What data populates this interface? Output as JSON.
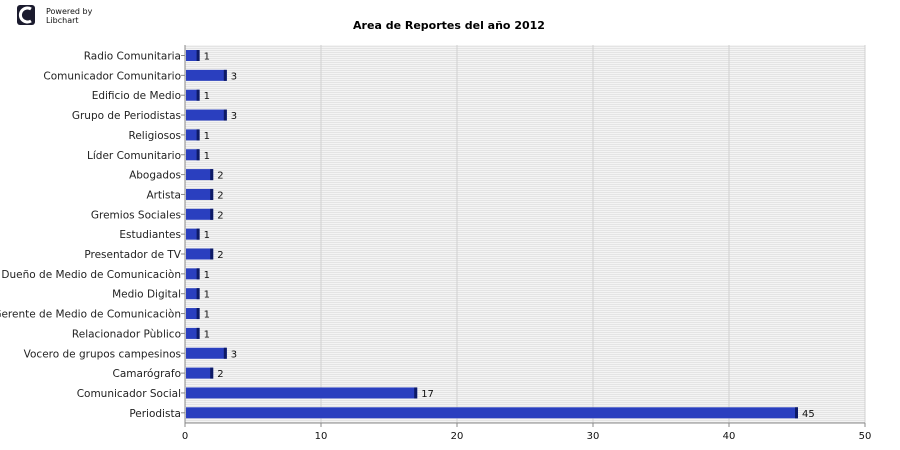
{
  "branding": {
    "logo_icon": "libchart-logo-icon",
    "line1": "Powered by",
    "line2": "Libchart"
  },
  "chart_data": {
    "type": "bar",
    "orientation": "horizontal",
    "title": "Area de Reportes del año 2012",
    "xlabel": "",
    "ylabel": "",
    "xlim": [
      0,
      50
    ],
    "x_ticks": [
      0,
      10,
      20,
      30,
      40,
      50
    ],
    "grid": true,
    "legend": "none",
    "bar_color": "#2a3fbf",
    "categories": [
      "Radio Comunitaria",
      "Comunicador Comunitario",
      "Edificio de Medio",
      "Grupo de Periodistas",
      "Religiosos",
      "Líder Comunitario",
      "Abogados",
      "Artista",
      "Gremios Sociales",
      "Estudiantes",
      "Presentador de TV",
      "Dueño de Medio de Comunicaciòn",
      "Medio Digital",
      "Gerente de Medio de Comunicaciòn",
      "Relacionador Pùblico",
      "Vocero de grupos campesinos",
      "Camarógrafo",
      "Comunicador Social",
      "Periodista"
    ],
    "values": [
      1,
      3,
      1,
      3,
      1,
      1,
      2,
      2,
      2,
      1,
      2,
      1,
      1,
      1,
      1,
      3,
      2,
      17,
      45
    ]
  }
}
